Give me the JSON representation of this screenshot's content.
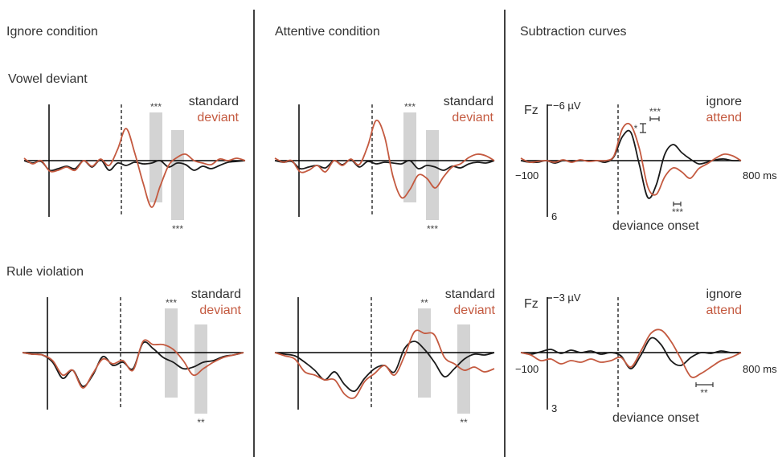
{
  "colors": {
    "standard": "#1a1a1a",
    "deviant": "#c45a40",
    "shade": "#d3d3d3",
    "axis": "#000000"
  },
  "headers": [
    "Ignore condition",
    "Attentive condition",
    "Subtraction curves"
  ],
  "row_labels": [
    "Vowel deviant",
    "Rule violation"
  ],
  "legend_main": [
    "standard",
    "deviant"
  ],
  "legend_sub": [
    "ignore",
    "attend"
  ],
  "axis": {
    "channel": "Fz",
    "row1_top": "−6 µV",
    "row1_bottom": "6",
    "row2_top": "−3 µV",
    "row2_bottom": "3",
    "x_start": "−100",
    "x_end": "800 ms"
  },
  "onset_label": "deviance onset",
  "sig": {
    "r1_ignore": [
      "***",
      "***"
    ],
    "r1_attend": [
      "***",
      "***"
    ],
    "r2_ignore": [
      "***",
      "**"
    ],
    "r2_attend": [
      "**",
      "**"
    ],
    "r1_sub": [
      "*",
      "***",
      "***"
    ],
    "r2_sub": [
      "**"
    ]
  },
  "chart_data": [
    {
      "type": "line",
      "panel": "Vowel deviant / Ignore condition",
      "series": [
        {
          "name": "standard",
          "values": [
            0,
            -3,
            -1,
            -12,
            -10,
            -7,
            -10,
            0,
            -8,
            1,
            -12,
            -3,
            -6,
            -2,
            -4,
            -3,
            0,
            -8,
            -3,
            -5,
            -12,
            -7,
            -10,
            -6,
            -2,
            -1,
            0
          ]
        },
        {
          "name": "deviant",
          "values": [
            3,
            -4,
            0,
            -13,
            -12,
            -8,
            -12,
            0,
            -7,
            2,
            -6,
            14,
            40,
            10,
            -28,
            -58,
            -32,
            -6,
            4,
            8,
            0,
            -3,
            -5,
            2,
            0,
            3,
            0
          ]
        }
      ]
    },
    {
      "type": "line",
      "panel": "Vowel deviant / Attentive condition",
      "series": [
        {
          "name": "standard",
          "values": [
            0,
            -2,
            -1,
            -10,
            -8,
            -6,
            -9,
            0,
            -5,
            1,
            -8,
            -1,
            -4,
            -2,
            -3,
            -4,
            0,
            -10,
            -6,
            -8,
            -12,
            -7,
            -9,
            -4,
            -2,
            -3,
            0
          ]
        },
        {
          "name": "deviant",
          "values": [
            3,
            -2,
            0,
            -14,
            -12,
            -6,
            -14,
            0,
            -6,
            2,
            -5,
            18,
            50,
            30,
            -20,
            -46,
            -36,
            -18,
            -22,
            -34,
            -20,
            -8,
            -4,
            4,
            8,
            6,
            0
          ]
        }
      ]
    },
    {
      "type": "line",
      "panel": "Vowel deviant / Subtraction curves",
      "series": [
        {
          "name": "ignore",
          "values": [
            0,
            -2,
            -2,
            0,
            -3,
            0,
            -1,
            0,
            0,
            0,
            -2,
            5,
            30,
            35,
            -5,
            -46,
            -30,
            8,
            20,
            10,
            2,
            -4,
            -2,
            1,
            2,
            0,
            0
          ]
        },
        {
          "name": "attend",
          "values": [
            3,
            -2,
            -1,
            0,
            -2,
            1,
            -2,
            1,
            -1,
            0,
            0,
            6,
            40,
            44,
            15,
            -33,
            -42,
            -20,
            -9,
            -14,
            -22,
            -10,
            -4,
            3,
            8,
            6,
            0
          ]
        }
      ]
    },
    {
      "type": "line",
      "panel": "Rule violation / Ignore condition",
      "series": [
        {
          "name": "standard",
          "values": [
            0,
            -2,
            -3,
            -12,
            -32,
            -22,
            -42,
            -28,
            -5,
            -16,
            -12,
            -20,
            12,
            5,
            -6,
            -12,
            -20,
            -18,
            -12,
            -10,
            -5,
            -3,
            0
          ]
        },
        {
          "name": "deviant",
          "values": [
            0,
            -2,
            -3,
            -10,
            -28,
            -22,
            -44,
            -26,
            -8,
            -14,
            -10,
            -22,
            14,
            10,
            10,
            4,
            -10,
            -28,
            -20,
            -12,
            -6,
            -3,
            0
          ]
        }
      ]
    },
    {
      "type": "line",
      "panel": "Rule violation / Attentive condition",
      "series": [
        {
          "name": "standard",
          "values": [
            0,
            -2,
            -4,
            -12,
            -22,
            -34,
            -24,
            -40,
            -48,
            -32,
            -20,
            -16,
            -24,
            5,
            14,
            4,
            -12,
            -30,
            -20,
            -8,
            -2,
            -3,
            0
          ]
        },
        {
          "name": "deviant",
          "values": [
            0,
            -4,
            -8,
            -24,
            -28,
            -34,
            -34,
            -52,
            -56,
            -36,
            -26,
            -16,
            -28,
            -4,
            26,
            24,
            22,
            -6,
            -14,
            -22,
            -18,
            -24,
            -20
          ]
        }
      ]
    },
    {
      "type": "line",
      "panel": "Rule violation / Subtraction curves",
      "series": [
        {
          "name": "ignore",
          "values": [
            0,
            -2,
            1,
            4,
            -1,
            3,
            0,
            2,
            -2,
            0,
            -4,
            -20,
            -3,
            18,
            10,
            -10,
            -16,
            -6,
            0,
            -1,
            2,
            0,
            0
          ]
        },
        {
          "name": "attend",
          "values": [
            0,
            -3,
            -10,
            -8,
            -14,
            -10,
            -12,
            -8,
            -12,
            -10,
            -6,
            -18,
            2,
            24,
            28,
            14,
            -8,
            -30,
            -26,
            -18,
            -10,
            -6,
            0
          ]
        }
      ]
    }
  ]
}
